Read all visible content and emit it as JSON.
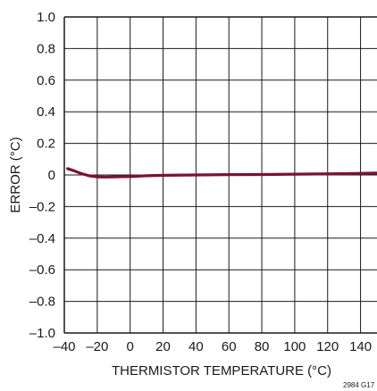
{
  "chart_data": {
    "type": "line",
    "xlabel": "THERMISTOR TEMPERATURE (°C)",
    "ylabel": "ERROR (°C)",
    "xlim": [
      -40,
      150
    ],
    "ylim": [
      -1.0,
      1.0
    ],
    "x_ticks": [
      "–40",
      "–20",
      "0",
      "20",
      "40",
      "60",
      "80",
      "100",
      "120",
      "140"
    ],
    "x_tick_values": [
      -40,
      -20,
      0,
      20,
      40,
      60,
      80,
      100,
      120,
      140
    ],
    "y_ticks": [
      "1.0",
      "0.8",
      "0.6",
      "0.4",
      "0.2",
      "0",
      "–0.2",
      "–0.4",
      "–0.6",
      "–0.8",
      "–1.0"
    ],
    "y_tick_values": [
      1.0,
      0.8,
      0.6,
      0.4,
      0.2,
      0,
      -0.2,
      -0.4,
      -0.6,
      -0.8,
      -1.0
    ],
    "grid": true,
    "series": [
      {
        "color": "#7a1230",
        "x": [
          -38,
          -35,
          -30,
          -25,
          -20,
          -15,
          -10,
          -5,
          0,
          10,
          20,
          40,
          60,
          80,
          100,
          120,
          140,
          150
        ],
        "y": [
          0.04,
          0.03,
          0.01,
          -0.005,
          -0.012,
          -0.013,
          -0.012,
          -0.011,
          -0.01,
          -0.005,
          -0.002,
          0.0,
          0.002,
          0.003,
          0.005,
          0.007,
          0.01,
          0.012
        ]
      }
    ],
    "figure_code": "2984 G17"
  }
}
